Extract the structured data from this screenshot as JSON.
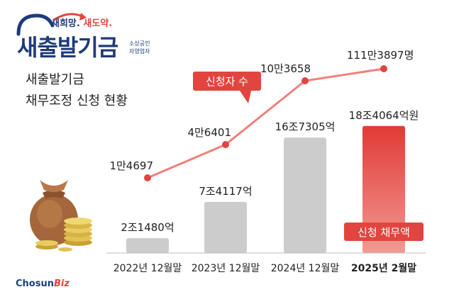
{
  "logo": {
    "tagline_a": "새희망.",
    "tagline_b": "새도약.",
    "name": "새출발기금",
    "sub_lines": [
      "소상공인",
      "자영업자"
    ]
  },
  "subtitle": [
    "새출발기금",
    "채무조정 신청 현황"
  ],
  "brand": {
    "a": "Chosun",
    "b": "Biz"
  },
  "colors": {
    "navy": "#1f3b78",
    "red": "#e2453f",
    "bar_gray": "#cccccc"
  },
  "chart_data": {
    "type": "bar",
    "categories": [
      "2022년 12월말",
      "2023년 12월말",
      "2024년 12월말",
      "2025년 2월말"
    ],
    "series": [
      {
        "name": "신청 채무액",
        "type": "bar",
        "values": [
          2.148,
          7.4117,
          16.7305,
          18.4064
        ],
        "labels": [
          "2조1480억",
          "7조4117억",
          "16조7305억",
          "18조4064억원"
        ]
      },
      {
        "name": "신청자 수",
        "type": "line",
        "values": [
          14697,
          46401,
          103658,
          1113897
        ],
        "labels": [
          "1만4697",
          "4만6401",
          "10만3658",
          "111만3897명"
        ]
      }
    ],
    "highlight_category": "2025년 2월말"
  }
}
